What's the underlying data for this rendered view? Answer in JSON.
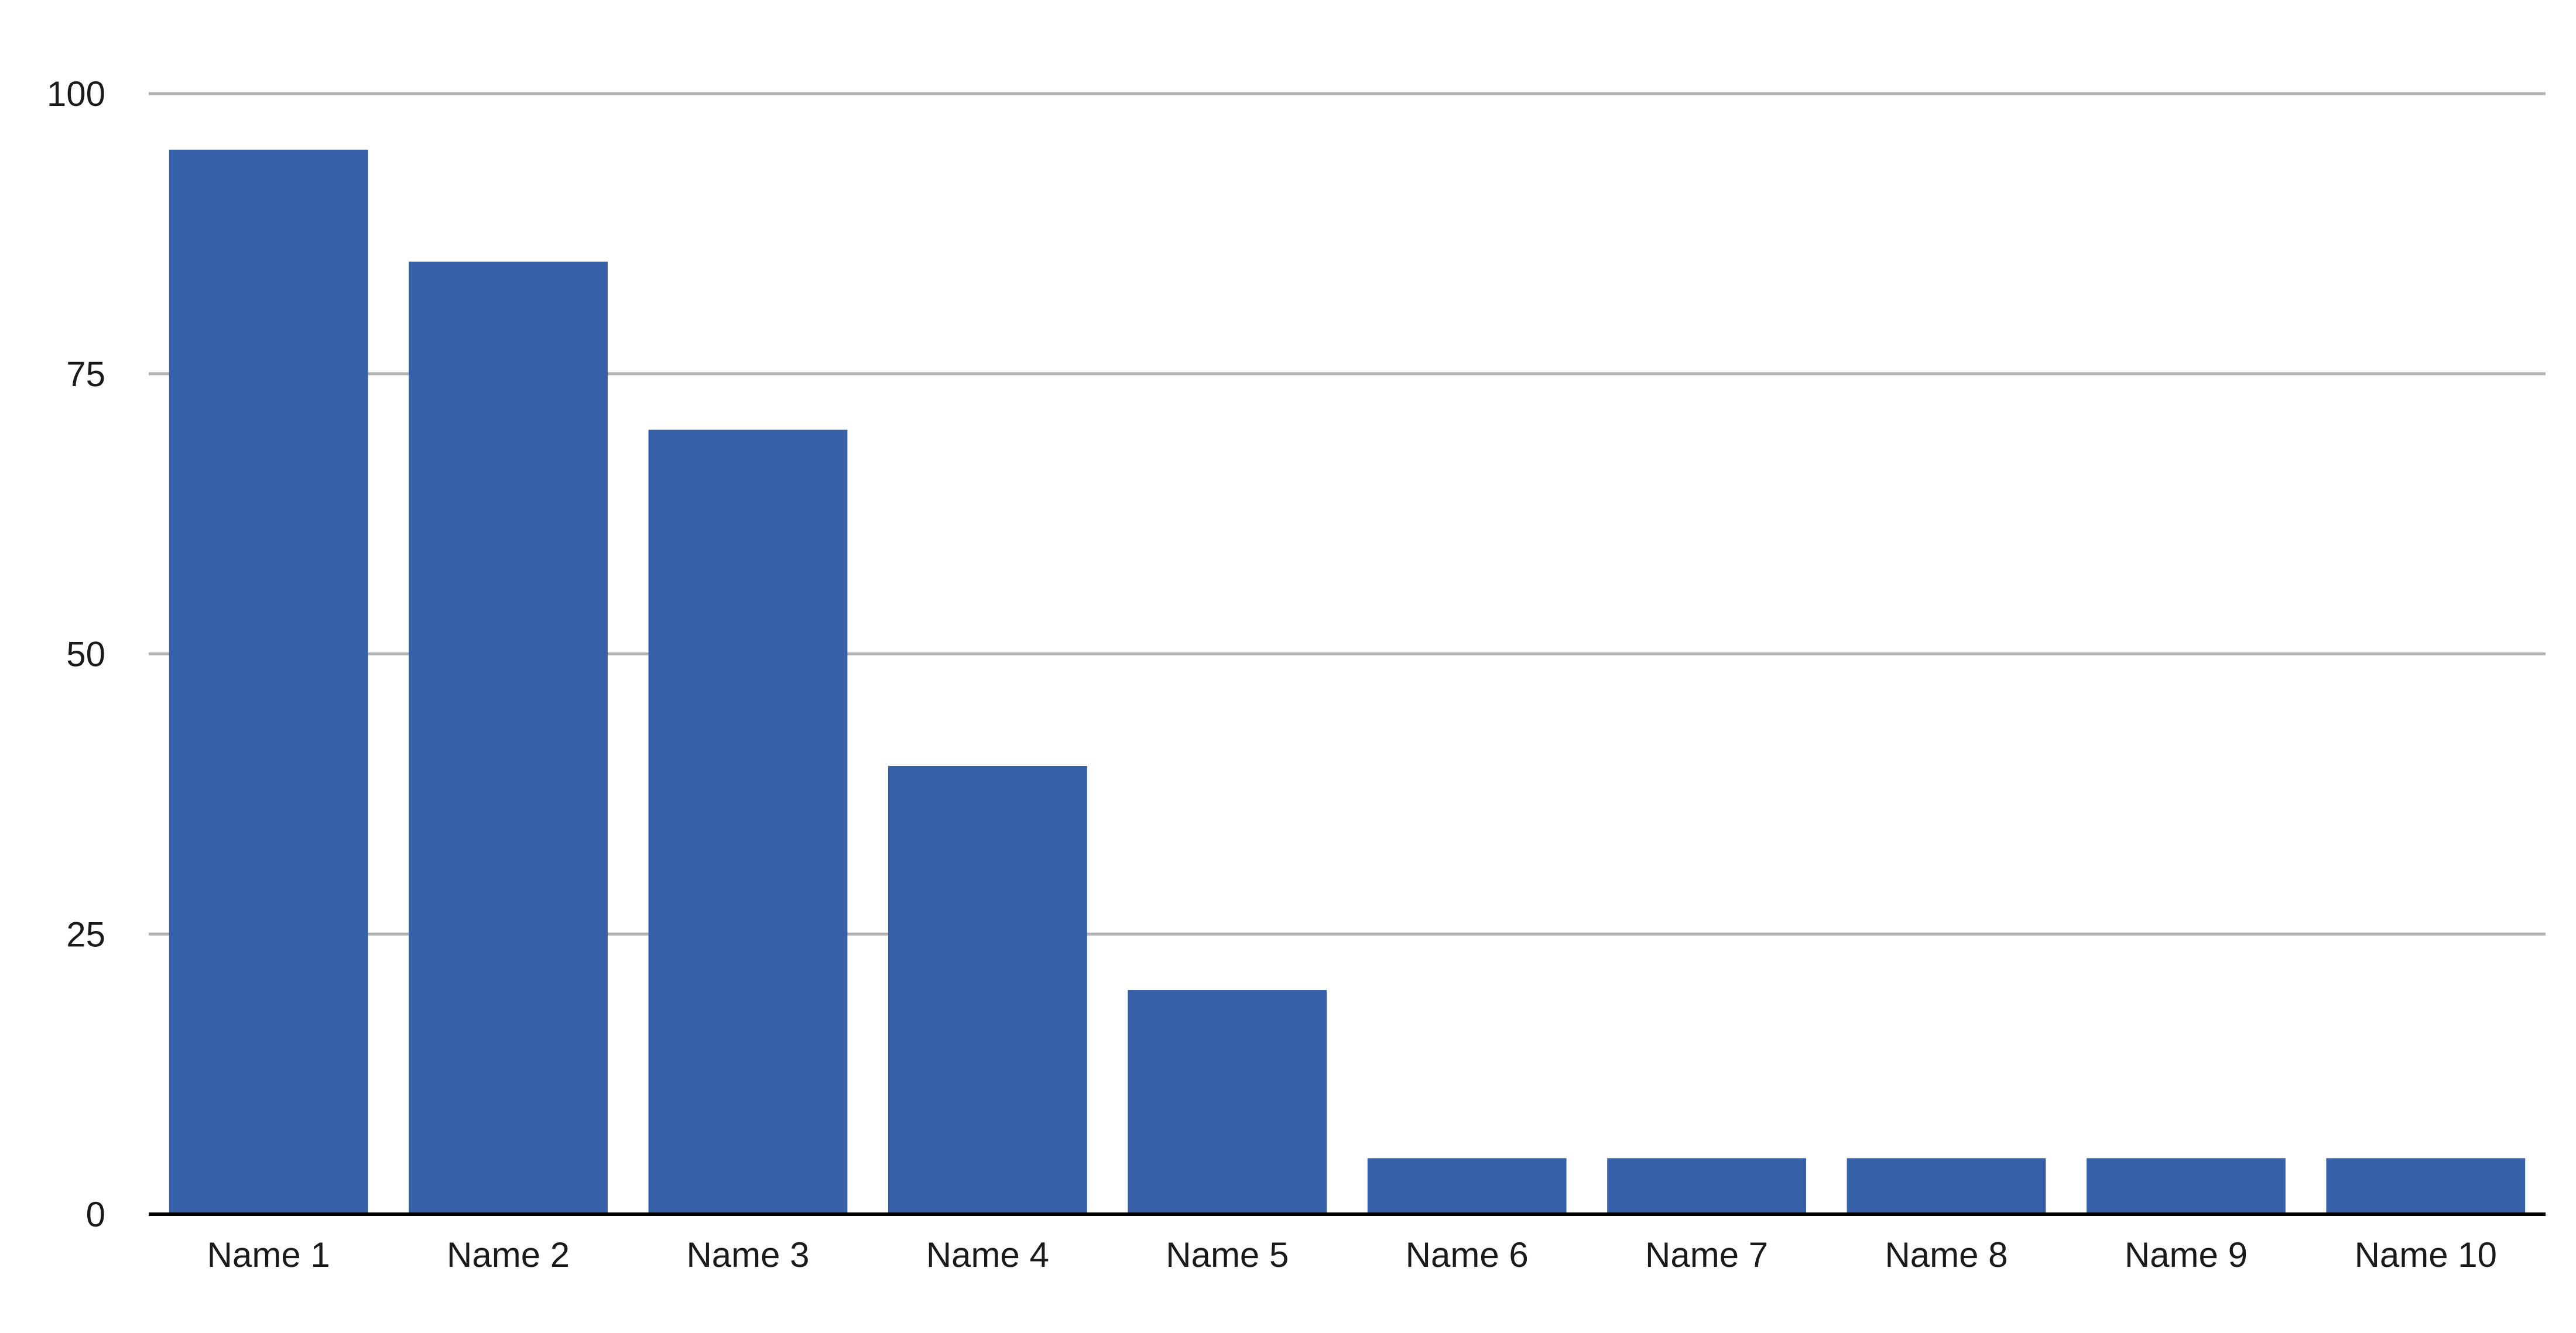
{
  "chart_data": {
    "type": "bar",
    "title": "",
    "xlabel": "",
    "ylabel": "",
    "categories": [
      "Name 1",
      "Name 2",
      "Name 3",
      "Name 4",
      "Name 5",
      "Name 6",
      "Name 7",
      "Name 8",
      "Name 9",
      "Name 10"
    ],
    "values": [
      95,
      85,
      70,
      40,
      20,
      5,
      5,
      5,
      5,
      5
    ],
    "ylim": [
      0,
      100
    ],
    "yticks": [
      0,
      25,
      50,
      75,
      100
    ],
    "ytick_labels": [
      "0",
      "25",
      "50",
      "75",
      "100"
    ],
    "grid": true,
    "legend": "none",
    "colors": {
      "bar": "#3660a8",
      "grid": "#b3b3b3",
      "axis": "#000000",
      "text": "#1a1a1a"
    }
  }
}
